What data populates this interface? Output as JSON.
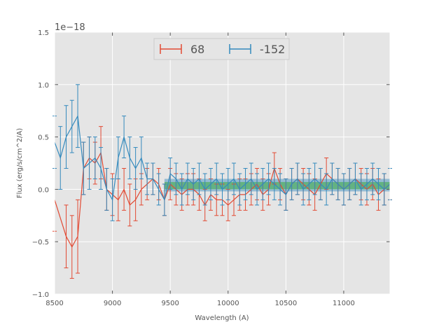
{
  "chart_data": {
    "type": "line",
    "title": "",
    "xlabel": "Wavelength (A)",
    "ylabel": "Flux (erg/s/cm^2/A)",
    "offset_label": "1e−18",
    "xlim": [
      8500,
      11400
    ],
    "ylim": [
      -1.0,
      1.5
    ],
    "xticks": [
      8500,
      9000,
      9500,
      10000,
      10500,
      11000
    ],
    "yticks": [
      -1.0,
      -0.5,
      0.0,
      0.5,
      1.0,
      1.5
    ],
    "xtick_labels": [
      "8500",
      "9000",
      "9500",
      "10000",
      "10500",
      "11000"
    ],
    "ytick_labels": [
      "−1.0",
      "−0.5",
      "0.0",
      "0.5",
      "1.0",
      "1.5"
    ],
    "grid": true,
    "legend": {
      "placement": "top-center",
      "columns": 2
    },
    "band": {
      "x_range": [
        9450,
        11400
      ],
      "y_range": [
        -0.02,
        0.1
      ],
      "color": "#348abd"
    },
    "band2": {
      "x_range": [
        9450,
        11400
      ],
      "y_range": [
        0.0,
        0.07
      ],
      "color": "#32a832"
    },
    "series": [
      {
        "name": "68",
        "color": "#e24a33",
        "x": [
          8500,
          8600,
          8650,
          8700,
          8750,
          8800,
          8850,
          8900,
          8950,
          9000,
          9050,
          9100,
          9150,
          9200,
          9250,
          9300,
          9350,
          9400,
          9450,
          9500,
          9550,
          9600,
          9650,
          9700,
          9750,
          9800,
          9850,
          9900,
          9950,
          10000,
          10050,
          10100,
          10150,
          10200,
          10250,
          10300,
          10350,
          10400,
          10450,
          10500,
          10550,
          10600,
          10650,
          10700,
          10750,
          10800,
          10850,
          10900,
          10950,
          11000,
          11050,
          11100,
          11150,
          11200,
          11250,
          11300,
          11350,
          11400
        ],
        "y": [
          -0.1,
          -0.45,
          -0.55,
          -0.45,
          0.2,
          0.3,
          0.25,
          0.35,
          0.0,
          -0.05,
          -0.1,
          0.0,
          -0.15,
          -0.1,
          0.0,
          0.05,
          0.1,
          0.05,
          -0.1,
          0.05,
          0.0,
          -0.05,
          0.0,
          0.0,
          -0.05,
          -0.15,
          -0.05,
          -0.1,
          -0.1,
          -0.15,
          -0.1,
          -0.05,
          -0.05,
          0.0,
          0.05,
          -0.05,
          0.0,
          0.2,
          0.05,
          -0.05,
          0.05,
          0.1,
          0.05,
          0.0,
          -0.05,
          0.05,
          0.15,
          0.1,
          0.05,
          0.0,
          0.05,
          0.1,
          0.05,
          0.0,
          0.05,
          -0.05,
          0.0,
          0.05
        ],
        "err": [
          0.3,
          0.3,
          0.3,
          0.35,
          0.25,
          0.2,
          0.2,
          0.25,
          0.2,
          0.2,
          0.2,
          0.2,
          0.2,
          0.2,
          0.15,
          0.15,
          0.15,
          0.15,
          0.15,
          0.15,
          0.15,
          0.15,
          0.15,
          0.15,
          0.15,
          0.15,
          0.15,
          0.15,
          0.15,
          0.15,
          0.15,
          0.15,
          0.15,
          0.15,
          0.15,
          0.15,
          0.15,
          0.15,
          0.15,
          0.15,
          0.15,
          0.15,
          0.15,
          0.15,
          0.15,
          0.15,
          0.15,
          0.15,
          0.15,
          0.15,
          0.15,
          0.15,
          0.15,
          0.15,
          0.15,
          0.15,
          0.15,
          0.15
        ]
      },
      {
        "name": "-152",
        "color": "#348abd",
        "x": [
          8500,
          8550,
          8600,
          8650,
          8700,
          8750,
          8800,
          8850,
          8900,
          8950,
          9000,
          9050,
          9100,
          9150,
          9200,
          9250,
          9300,
          9350,
          9400,
          9450,
          9500,
          9550,
          9600,
          9650,
          9700,
          9750,
          9800,
          9850,
          9900,
          9950,
          10000,
          10050,
          10100,
          10150,
          10200,
          10250,
          10300,
          10350,
          10400,
          10450,
          10500,
          10550,
          10600,
          10650,
          10700,
          10750,
          10800,
          10850,
          10900,
          10950,
          11000,
          11050,
          11100,
          11150,
          11200,
          11250,
          11300,
          11350,
          11400
        ],
        "y": [
          0.45,
          0.3,
          0.5,
          0.6,
          0.7,
          0.2,
          0.25,
          0.3,
          0.2,
          0.0,
          -0.1,
          0.3,
          0.5,
          0.3,
          0.2,
          0.3,
          0.1,
          0.1,
          0.0,
          -0.1,
          0.15,
          0.1,
          0.0,
          0.1,
          0.05,
          0.1,
          0.0,
          0.05,
          0.1,
          0.0,
          0.05,
          0.1,
          0.0,
          0.05,
          0.1,
          0.0,
          0.05,
          0.1,
          0.05,
          0.0,
          -0.05,
          0.05,
          0.1,
          0.0,
          0.05,
          0.1,
          0.05,
          0.0,
          0.1,
          0.05,
          0.0,
          0.05,
          0.1,
          0.0,
          0.05,
          0.1,
          0.05,
          0.0,
          0.05
        ],
        "err": [
          0.25,
          0.3,
          0.3,
          0.25,
          0.3,
          0.25,
          0.25,
          0.2,
          0.2,
          0.2,
          0.2,
          0.2,
          0.2,
          0.2,
          0.2,
          0.2,
          0.15,
          0.15,
          0.15,
          0.15,
          0.15,
          0.15,
          0.15,
          0.15,
          0.15,
          0.15,
          0.15,
          0.15,
          0.15,
          0.15,
          0.15,
          0.15,
          0.15,
          0.15,
          0.15,
          0.15,
          0.15,
          0.15,
          0.15,
          0.15,
          0.15,
          0.15,
          0.15,
          0.15,
          0.15,
          0.15,
          0.15,
          0.15,
          0.15,
          0.15,
          0.15,
          0.15,
          0.15,
          0.15,
          0.15,
          0.15,
          0.15,
          0.15,
          0.15
        ]
      }
    ]
  }
}
